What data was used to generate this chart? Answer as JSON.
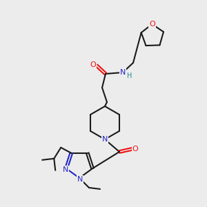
{
  "bg_color": "#ececec",
  "C": "#1a1a1a",
  "N": "#2323cc",
  "O": "#ee1111",
  "H": "#228888",
  "lw": 1.5,
  "lw2": 1.5,
  "fs": 8.0,
  "fsh": 7.0,
  "off": 2.0
}
